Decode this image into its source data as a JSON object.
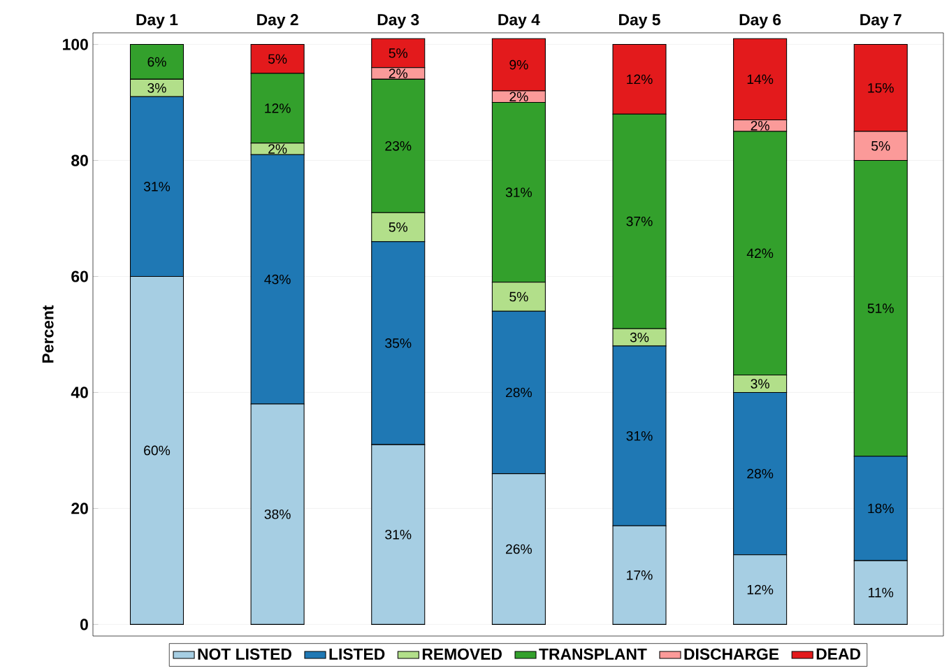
{
  "chart_data": {
    "type": "bar",
    "stacked": true,
    "ylabel": "Percent",
    "categories": [
      "Day 1",
      "Day 2",
      "Day 3",
      "Day 4",
      "Day 5",
      "Day 6",
      "Day 7"
    ],
    "series": [
      {
        "name": "NOT LISTED",
        "color": "#a6cee3",
        "values": [
          60,
          38,
          31,
          26,
          17,
          12,
          11
        ],
        "value_labels": [
          "60%",
          "38%",
          "31%",
          "26%",
          "17%",
          "12%",
          "11%"
        ]
      },
      {
        "name": "LISTED",
        "color": "#1f78b4",
        "values": [
          31,
          43,
          35,
          28,
          31,
          28,
          18
        ],
        "value_labels": [
          "31%",
          "43%",
          "35%",
          "28%",
          "31%",
          "28%",
          "18%"
        ]
      },
      {
        "name": "REMOVED",
        "color": "#b2df8a",
        "values": [
          3,
          2,
          5,
          5,
          3,
          3,
          0
        ],
        "value_labels": [
          "3%",
          "2%",
          "5%",
          "5%",
          "3%",
          "3%",
          null
        ]
      },
      {
        "name": "TRANSPLANT",
        "color": "#33a02c",
        "values": [
          6,
          12,
          23,
          31,
          37,
          42,
          51
        ],
        "value_labels": [
          "6%",
          "12%",
          "23%",
          "31%",
          "37%",
          "42%",
          "51%"
        ]
      },
      {
        "name": "DISCHARGE",
        "color": "#fb9a99",
        "values": [
          0,
          0,
          2,
          2,
          0,
          2,
          5
        ],
        "value_labels": [
          null,
          null,
          "2%",
          "2%",
          null,
          "2%",
          "5%"
        ]
      },
      {
        "name": "DEAD",
        "color": "#e31a1c",
        "values": [
          0,
          5,
          5,
          9,
          12,
          14,
          15
        ],
        "value_labels": [
          null,
          "5%",
          "5%",
          "9%",
          "12%",
          "14%",
          "15%"
        ]
      }
    ],
    "ylim": [
      -2,
      102
    ],
    "yticks": [
      0,
      20,
      40,
      60,
      80,
      100
    ],
    "grid": "y",
    "legend": "bottom"
  }
}
